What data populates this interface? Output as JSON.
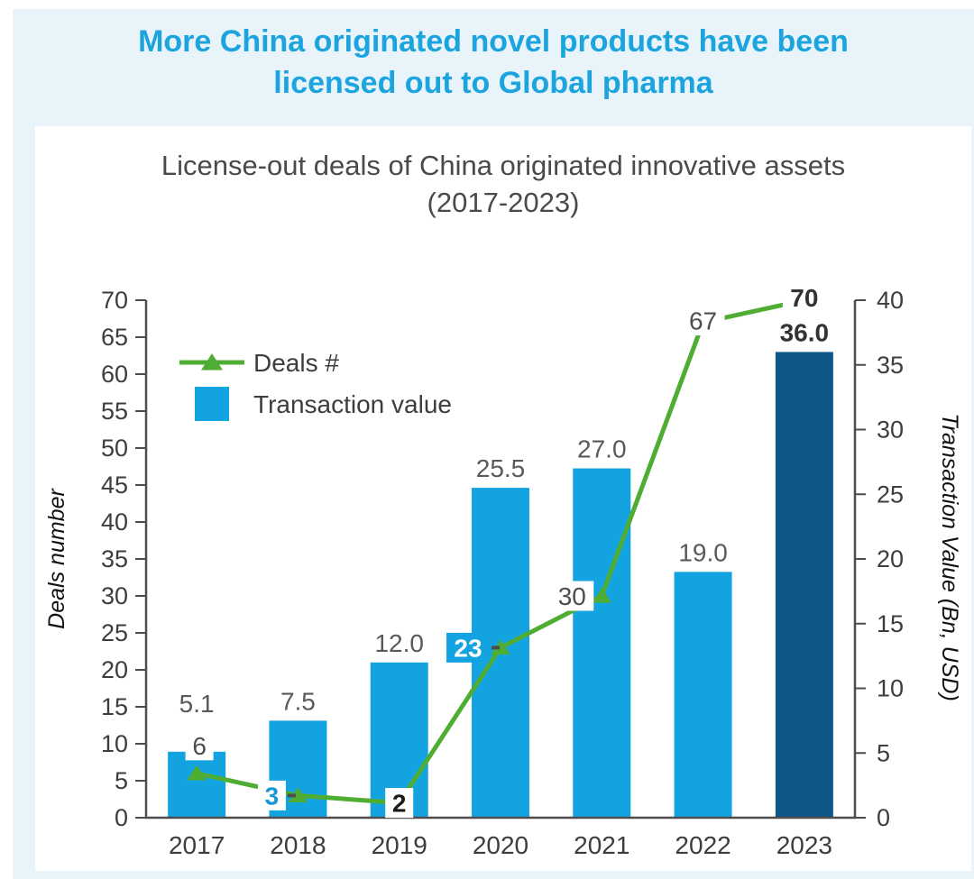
{
  "page": {
    "title_line1": "More China originated novel products have been",
    "title_line2": "licensed out to Global pharma",
    "title_color": "#1CA4DF",
    "background_color": "#E8F3FA"
  },
  "chart_data": {
    "type": "bar",
    "combo": "bar+line",
    "title_line1": "License-out deals of China originated innovative assets",
    "title_line2": "(2017-2023)",
    "categories": [
      "2017",
      "2018",
      "2019",
      "2020",
      "2021",
      "2022",
      "2023"
    ],
    "series": [
      {
        "name": "Deals #",
        "type": "line",
        "axis": "left",
        "color": "#4FAD33",
        "values": [
          6,
          3,
          2,
          23,
          30,
          67,
          70
        ]
      },
      {
        "name": "Transaction value",
        "type": "bar",
        "axis": "right",
        "color": "#14A3E1",
        "last_bar_color": "#0E5787",
        "values": [
          5.1,
          7.5,
          12.0,
          25.5,
          27.0,
          19.0,
          36.0
        ]
      }
    ],
    "left_axis": {
      "label": "Deals number",
      "min": 0,
      "max": 70,
      "step": 5
    },
    "right_axis": {
      "label": "Transaction Value (Bn, USD)",
      "min": 0,
      "max": 40,
      "step": 5
    },
    "grid": false,
    "legend_position": "upper-left",
    "legend": [
      {
        "label": "Deals #",
        "marker": "line-triangle",
        "color": "#4FAD33"
      },
      {
        "label": "Transaction value",
        "marker": "square",
        "color": "#14A3E1"
      }
    ],
    "bar_value_labels": [
      {
        "text": "5.1",
        "bold": false,
        "color": "#595959"
      },
      {
        "text": "7.5",
        "bold": false,
        "color": "#595959"
      },
      {
        "text": "12.0",
        "bold": false,
        "color": "#595959"
      },
      {
        "text": "25.5",
        "bold": false,
        "color": "#595959"
      },
      {
        "text": "27.0",
        "bold": false,
        "color": "#595959"
      },
      {
        "text": "19.0",
        "bold": false,
        "color": "#595959"
      },
      {
        "text": "36.0",
        "bold": true,
        "color": "#333333"
      }
    ],
    "deal_point_labels": [
      {
        "text": "6",
        "bg": "#FFFFFF",
        "color": "#4D4D4D",
        "bold": false,
        "dash": false
      },
      {
        "text": "3",
        "bg": "#FFFFFF",
        "color": "#1898D6",
        "bold": true,
        "dash": true
      },
      {
        "text": "2",
        "bg": "#FFFFFF",
        "color": "#1A1A1A",
        "bold": true,
        "dash": false
      },
      {
        "text": "23",
        "bg": "#14A3E1",
        "color": "#FFFFFF",
        "bold": true,
        "dash": true
      },
      {
        "text": "30",
        "bg": "#FFFFFF",
        "color": "#4D4D4D",
        "bold": false,
        "dash": false
      },
      {
        "text": "67",
        "bg": "#FFFFFF",
        "color": "#4D4D4D",
        "bold": false,
        "dash": false
      },
      {
        "text": "70",
        "bg": "#FFFFFF",
        "color": "#333333",
        "bold": true,
        "dash": false
      }
    ],
    "axis_color": "#4D4D4D",
    "tick_label_color": "#3D3D3D",
    "axis_title_color": "#111111"
  }
}
